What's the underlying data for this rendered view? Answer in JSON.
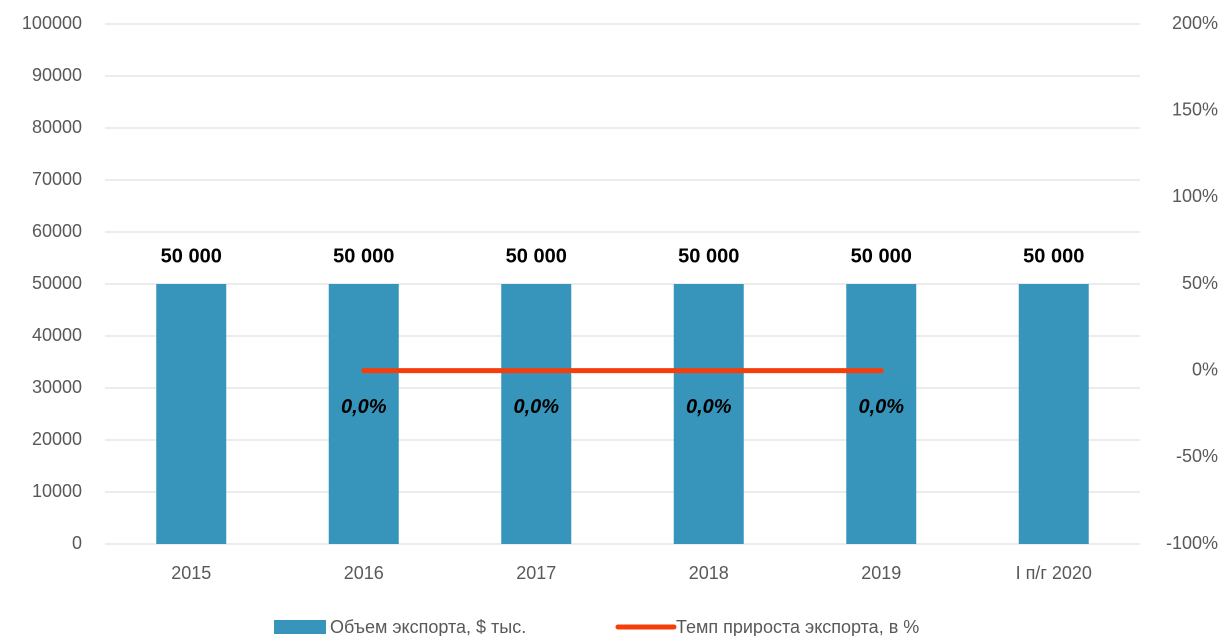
{
  "chart_data": {
    "type": "bar",
    "categories": [
      "2015",
      "2016",
      "2017",
      "2018",
      "2019",
      "I п/г 2020"
    ],
    "series": [
      {
        "name": "Объем экспорта, $ тыс.",
        "type": "bar",
        "color": "#3795bc",
        "values": [
          50000,
          50000,
          50000,
          50000,
          50000,
          50000
        ],
        "value_labels": [
          "50 000",
          "50 000",
          "50 000",
          "50 000",
          "50 000",
          "50 000"
        ]
      },
      {
        "name": "Темп прироста экспорта, в %",
        "type": "line",
        "axis": "y2",
        "color": "#f43f0c",
        "values": [
          null,
          0,
          0,
          0,
          0,
          null
        ],
        "value_labels": [
          null,
          "0,0%",
          "0,0%",
          "0,0%",
          "0,0%",
          null
        ]
      }
    ],
    "ylim": [
      0,
      100000
    ],
    "yticks": [
      0,
      10000,
      20000,
      30000,
      40000,
      50000,
      60000,
      70000,
      80000,
      90000,
      100000
    ],
    "y2lim": [
      -100,
      200
    ],
    "y2ticks": [
      {
        "value": -100,
        "label": "-100%"
      },
      {
        "value": -50,
        "label": "-50%"
      },
      {
        "value": 0,
        "label": "0%"
      },
      {
        "value": 50,
        "label": "50%"
      },
      {
        "value": 100,
        "label": "100%"
      },
      {
        "value": 150,
        "label": "150%"
      },
      {
        "value": 200,
        "label": "200%"
      }
    ],
    "grid": true,
    "legend": "bottom"
  }
}
